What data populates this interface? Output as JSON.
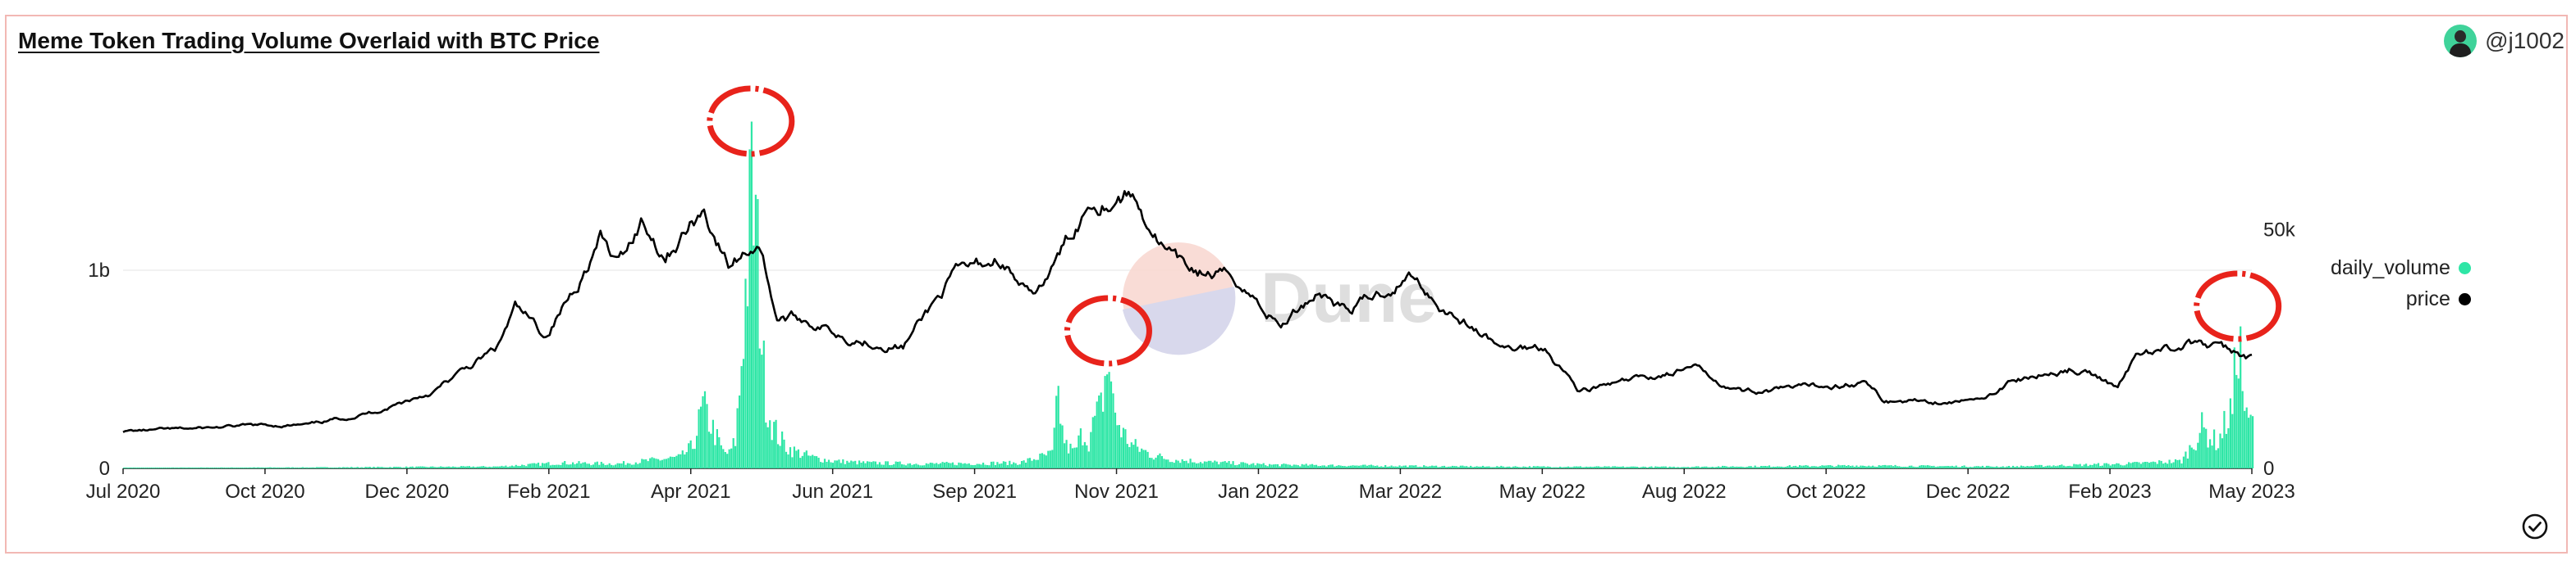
{
  "header": {
    "title": "Meme Token Trading Volume Overlaid with BTC Price",
    "user_handle": "@j1002"
  },
  "watermark": {
    "text": "Dune"
  },
  "colors": {
    "volume": "#2ee6a6",
    "price": "#000000",
    "highlight": "#e8231b",
    "grid": "#eeeeee",
    "axis": "#222222"
  },
  "chart_data": {
    "type": "bar",
    "title": "Meme Token Trading Volume Overlaid with BTC Price",
    "x_ticks": [
      "Jul 2020",
      "Oct 2020",
      "Dec 2020",
      "Feb 2021",
      "Apr 2021",
      "Jun 2021",
      "Sep 2021",
      "Nov 2021",
      "Jan 2022",
      "Mar 2022",
      "May 2022",
      "Aug 2022",
      "Oct 2022",
      "Dec 2022",
      "Feb 2023",
      "May 2023"
    ],
    "x_range": [
      "2020-07-01",
      "2023-05-15"
    ],
    "left_axis": {
      "ticks": [
        "0",
        "1b"
      ],
      "range": [
        0,
        2000000000
      ]
    },
    "right_axis": {
      "ticks": [
        "0",
        "50k"
      ],
      "range": [
        0,
        97000
      ]
    },
    "grid": true,
    "legend_position": "right",
    "series": [
      {
        "name": "daily_volume",
        "type": "bar",
        "axis": "left",
        "color": "#2ee6a6",
        "points": [
          [
            "2020-07-01",
            3000000
          ],
          [
            "2020-10-01",
            5000000
          ],
          [
            "2021-01-01",
            10000000
          ],
          [
            "2021-02-01",
            30000000
          ],
          [
            "2021-03-01",
            25000000
          ],
          [
            "2021-04-01",
            60000000
          ],
          [
            "2021-04-07",
            120000000
          ],
          [
            "2021-04-12",
            330000000
          ],
          [
            "2021-04-16",
            240000000
          ],
          [
            "2021-04-19",
            160000000
          ],
          [
            "2021-04-22",
            90000000
          ],
          [
            "2021-04-25",
            80000000
          ],
          [
            "2021-04-28",
            150000000
          ],
          [
            "2021-04-30",
            420000000
          ],
          [
            "2021-05-02",
            800000000
          ],
          [
            "2021-05-04",
            1130000000
          ],
          [
            "2021-05-06",
            1500000000
          ],
          [
            "2021-05-08",
            1300000000
          ],
          [
            "2021-05-10",
            950000000
          ],
          [
            "2021-05-12",
            520000000
          ],
          [
            "2021-05-14",
            320000000
          ],
          [
            "2021-05-17",
            220000000
          ],
          [
            "2021-05-20",
            160000000
          ],
          [
            "2021-05-24",
            110000000
          ],
          [
            "2021-05-28",
            90000000
          ],
          [
            "2021-06-05",
            60000000
          ],
          [
            "2021-06-15",
            40000000
          ],
          [
            "2021-07-01",
            30000000
          ],
          [
            "2021-08-01",
            25000000
          ],
          [
            "2021-09-15",
            30000000
          ],
          [
            "2021-10-01",
            80000000
          ],
          [
            "2021-10-04",
            390000000
          ],
          [
            "2021-10-06",
            200000000
          ],
          [
            "2021-10-08",
            120000000
          ],
          [
            "2021-10-12",
            90000000
          ],
          [
            "2021-10-16",
            200000000
          ],
          [
            "2021-10-19",
            150000000
          ],
          [
            "2021-10-22",
            260000000
          ],
          [
            "2021-10-25",
            330000000
          ],
          [
            "2021-10-27",
            480000000
          ],
          [
            "2021-10-29",
            580000000
          ],
          [
            "2021-10-31",
            340000000
          ],
          [
            "2021-11-02",
            260000000
          ],
          [
            "2021-11-05",
            190000000
          ],
          [
            "2021-11-09",
            130000000
          ],
          [
            "2021-11-14",
            100000000
          ],
          [
            "2021-11-20",
            70000000
          ],
          [
            "2021-11-28",
            50000000
          ],
          [
            "2021-12-15",
            35000000
          ],
          [
            "2022-01-15",
            20000000
          ],
          [
            "2022-03-01",
            15000000
          ],
          [
            "2022-05-01",
            10000000
          ],
          [
            "2022-08-01",
            8000000
          ],
          [
            "2022-11-01",
            15000000
          ],
          [
            "2023-01-15",
            10000000
          ],
          [
            "2023-03-15",
            25000000
          ],
          [
            "2023-04-10",
            40000000
          ],
          [
            "2023-04-16",
            140000000
          ],
          [
            "2023-04-20",
            220000000
          ],
          [
            "2023-04-24",
            170000000
          ],
          [
            "2023-04-28",
            140000000
          ],
          [
            "2023-05-02",
            260000000
          ],
          [
            "2023-05-05",
            320000000
          ],
          [
            "2023-05-08",
            780000000
          ],
          [
            "2023-05-10",
            450000000
          ],
          [
            "2023-05-12",
            250000000
          ]
        ]
      },
      {
        "name": "price",
        "type": "line",
        "axis": "right",
        "color": "#000000",
        "points": [
          [
            "2020-07-01",
            9100
          ],
          [
            "2020-08-01",
            9600
          ],
          [
            "2020-09-01",
            10400
          ],
          [
            "2020-10-01",
            10600
          ],
          [
            "2020-11-01",
            13800
          ],
          [
            "2020-12-01",
            18900
          ],
          [
            "2021-01-01",
            29200
          ],
          [
            "2021-01-10",
            39000
          ],
          [
            "2021-01-25",
            32500
          ],
          [
            "2021-02-08",
            44000
          ],
          [
            "2021-02-21",
            56500
          ],
          [
            "2021-03-01",
            49500
          ],
          [
            "2021-03-13",
            61000
          ],
          [
            "2021-03-25",
            52500
          ],
          [
            "2021-04-13",
            63500
          ],
          [
            "2021-04-25",
            49500
          ],
          [
            "2021-05-10",
            56000
          ],
          [
            "2021-05-19",
            37000
          ],
          [
            "2021-06-01",
            36500
          ],
          [
            "2021-06-22",
            32500
          ],
          [
            "2021-07-20",
            29900
          ],
          [
            "2021-08-14",
            47000
          ],
          [
            "2021-09-06",
            51500
          ],
          [
            "2021-09-21",
            41000
          ],
          [
            "2021-10-01",
            48000
          ],
          [
            "2021-10-20",
            66000
          ],
          [
            "2021-11-09",
            67500
          ],
          [
            "2021-11-26",
            53500
          ],
          [
            "2021-12-04",
            49000
          ],
          [
            "2021-12-31",
            46300
          ],
          [
            "2022-01-22",
            35000
          ],
          [
            "2022-02-10",
            44000
          ],
          [
            "2022-02-24",
            38500
          ],
          [
            "2022-03-28",
            47500
          ],
          [
            "2022-04-11",
            40000
          ],
          [
            "2022-05-12",
            29000
          ],
          [
            "2022-06-01",
            30000
          ],
          [
            "2022-06-18",
            19000
          ],
          [
            "2022-07-10",
            21000
          ],
          [
            "2022-08-13",
            24500
          ],
          [
            "2022-09-06",
            19000
          ],
          [
            "2022-10-01",
            19300
          ],
          [
            "2022-11-05",
            21300
          ],
          [
            "2022-11-15",
            16500
          ],
          [
            "2022-12-31",
            16500
          ],
          [
            "2023-01-14",
            20900
          ],
          [
            "2023-02-15",
            24500
          ],
          [
            "2023-03-10",
            20000
          ],
          [
            "2023-03-20",
            28000
          ],
          [
            "2023-04-14",
            30500
          ],
          [
            "2023-04-28",
            29400
          ],
          [
            "2023-05-15",
            27000
          ]
        ]
      }
    ],
    "annotations": [
      {
        "shape": "circle",
        "near": "2021-05-06"
      },
      {
        "shape": "circle",
        "near": "2021-10-29"
      },
      {
        "shape": "circle",
        "near": "2023-05-08"
      }
    ]
  },
  "legend": {
    "items": [
      {
        "label": "daily_volume",
        "color": "#2ee6a6"
      },
      {
        "label": "price",
        "color": "#000000"
      }
    ]
  }
}
